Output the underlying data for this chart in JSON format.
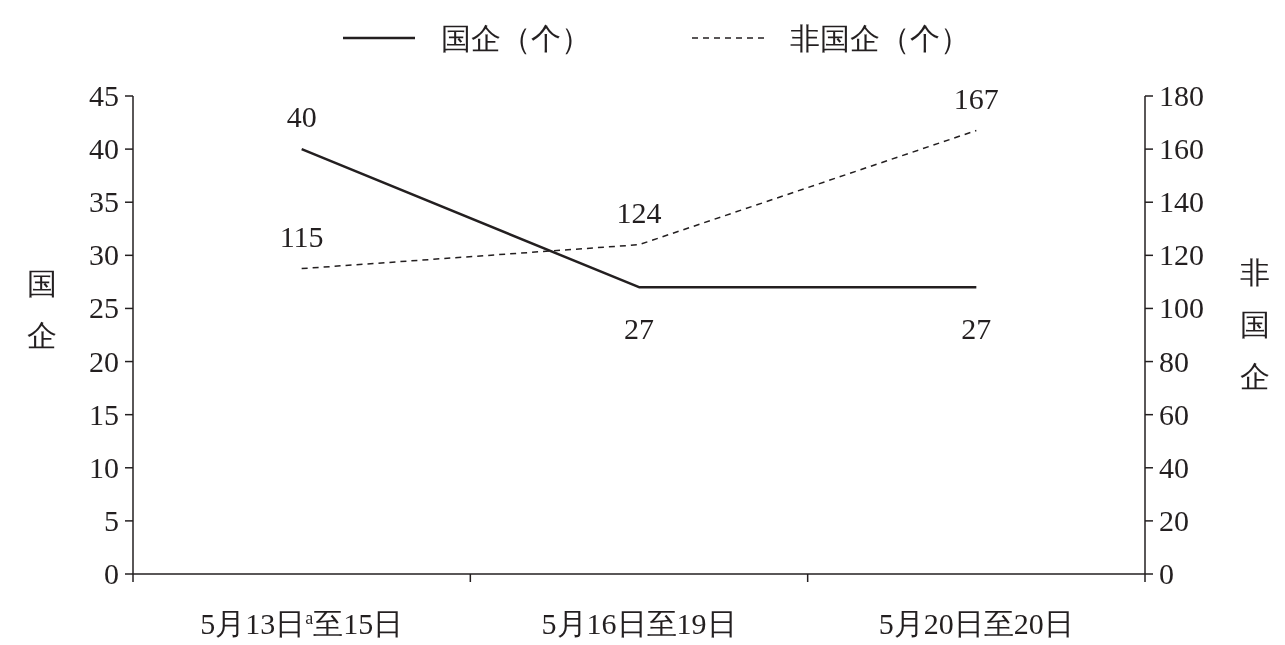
{
  "chart_data": {
    "type": "line",
    "categories": [
      "5月13日$^{a}$至15日",
      "5月16日至19日",
      "5月20日至20日"
    ],
    "series": [
      {
        "name": "国企（个）",
        "color": "#231f20",
        "line_style": "solid",
        "values": [
          40,
          27,
          27
        ]
      },
      {
        "name": "非国企（个）",
        "color": "#231f20",
        "line_style": "dashed",
        "axis": "y2",
        "values": [
          115,
          124,
          167
        ]
      }
    ],
    "ylabel": "国企",
    "y2label": "非国企",
    "ylim": [
      0,
      45
    ],
    "yticks": [
      0,
      5,
      10,
      15,
      20,
      25,
      30,
      35,
      40,
      45
    ],
    "y2lim": [
      0,
      180
    ],
    "y2ticks": [
      0,
      20,
      40,
      60,
      80,
      100,
      120,
      140,
      160,
      180
    ],
    "data_labels": true,
    "legend": "top",
    "grid": false,
    "marker": "none"
  }
}
